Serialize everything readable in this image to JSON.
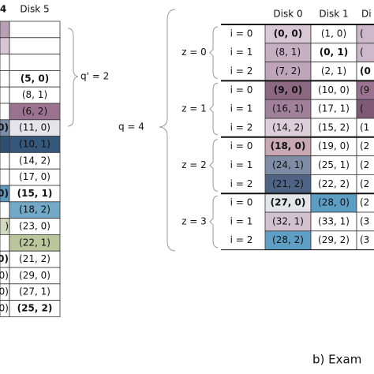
{
  "left_table": {
    "header_cut": "4",
    "header": "Disk 5",
    "rows": [
      {
        "text": "(5, 0)",
        "bold": true
      },
      {
        "text": "(8, 1)"
      },
      {
        "text": "(6, 2)",
        "fill": "#9b7390"
      },
      {
        "text": "(11, 0)",
        "fill": "#e4e4ea",
        "cut": "0)",
        "cut_fill": "#7d8ea8",
        "cut_bold": true
      },
      {
        "text": "(10, 1)",
        "fill": "#34577a",
        "cut_fill": "#2e4f70"
      },
      {
        "text": "(14, 2)"
      },
      {
        "text": "(17, 0)"
      },
      {
        "text": "(15, 1)",
        "bold": true,
        "cut": "0)",
        "cut_fill": "#5d97bd",
        "cut_bold": true
      },
      {
        "text": "(18, 2)",
        "fill": "#72a9c9"
      },
      {
        "text": "(23, 0)",
        "cut": ")",
        "cut_fill": "#d3d9bd"
      },
      {
        "text": "(22, 1)",
        "fill": "#bcc59c"
      },
      {
        "text": "(21, 2)",
        "cut": "0)",
        "cut_bold": true
      },
      {
        "text": "(29, 0)",
        "cut": "0)"
      },
      {
        "text": "(27, 1)",
        "cut": "0)"
      },
      {
        "text": "(25, 2)",
        "bold": true,
        "cut": "0)"
      }
    ]
  },
  "left_brace_label": "q' = 2",
  "right_brace_label": "q = 4",
  "right_table": {
    "headers": [
      "Disk 0",
      "Disk 1",
      "Di"
    ],
    "groups": [
      {
        "label": "z = 0",
        "rows": [
          {
            "i": "i = 0",
            "cells": [
              {
                "text": "(0, 0)",
                "bold": true,
                "fill": "#d9c9d6"
              },
              {
                "text": "(1, 0)"
              },
              {
                "text": "(",
                "fill": "#cdb8c9"
              }
            ]
          },
          {
            "i": "i = 1",
            "cells": [
              {
                "text": "(8, 1)",
                "fill": "#c6afc1"
              },
              {
                "text": "(0, 1)",
                "bold": true
              },
              {
                "text": "(",
                "fill": "#cdb8c9"
              }
            ]
          },
          {
            "i": "i = 2",
            "cells": [
              {
                "text": "(7, 2)",
                "fill": "#bfa5b9"
              },
              {
                "text": "(2, 1)"
              },
              {
                "text": "(0",
                "bold": true
              }
            ]
          }
        ]
      },
      {
        "label": "z = 1",
        "rows": [
          {
            "i": "i = 0",
            "cells": [
              {
                "text": "(9, 0)",
                "bold": true,
                "fill": "#8d6883"
              },
              {
                "text": "(10, 0)"
              },
              {
                "text": "(9",
                "fill": "#9b7390"
              }
            ]
          },
          {
            "i": "i = 1",
            "cells": [
              {
                "text": "(16, 1)",
                "fill": "#a1809a"
              },
              {
                "text": "(17, 1)"
              },
              {
                "text": "(",
                "fill": "#7e5a76"
              }
            ]
          },
          {
            "i": "i = 2",
            "cells": [
              {
                "text": "(14, 2)",
                "fill": "#dccfd9"
              },
              {
                "text": "(15, 2)"
              },
              {
                "text": "(1"
              }
            ]
          }
        ]
      },
      {
        "label": "z = 2",
        "rows": [
          {
            "i": "i = 0",
            "cells": [
              {
                "text": "(18, 0)",
                "bold": true,
                "fill": "#c8a9b3"
              },
              {
                "text": "(19, 0)"
              },
              {
                "text": "(2"
              }
            ]
          },
          {
            "i": "i = 1",
            "cells": [
              {
                "text": "(24, 1)",
                "fill": "#7e8ca6"
              },
              {
                "text": "(25, 1)"
              },
              {
                "text": "(2"
              }
            ]
          },
          {
            "i": "i = 2",
            "cells": [
              {
                "text": "(21, 2)",
                "fill": "#4f6484"
              },
              {
                "text": "(22, 2)"
              },
              {
                "text": "(2"
              }
            ]
          }
        ]
      },
      {
        "label": "z = 3",
        "rows": [
          {
            "i": "i = 0",
            "cells": [
              {
                "text": "(27, 0)",
                "bold": true,
                "fill": "#e3e5ea"
              },
              {
                "text": "(28, 0)",
                "fill": "#5c9dc4"
              },
              {
                "text": "(2"
              }
            ]
          },
          {
            "i": "i = 1",
            "cells": [
              {
                "text": "(32, 1)",
                "fill": "#d2c2cf"
              },
              {
                "text": "(33, 1)"
              },
              {
                "text": "(3"
              }
            ]
          },
          {
            "i": "i = 2",
            "cells": [
              {
                "text": "(28, 2)",
                "fill": "#5f9fc5"
              },
              {
                "text": "(29, 2)"
              },
              {
                "text": "(3"
              }
            ]
          }
        ]
      }
    ]
  },
  "caption": "b) Exam"
}
